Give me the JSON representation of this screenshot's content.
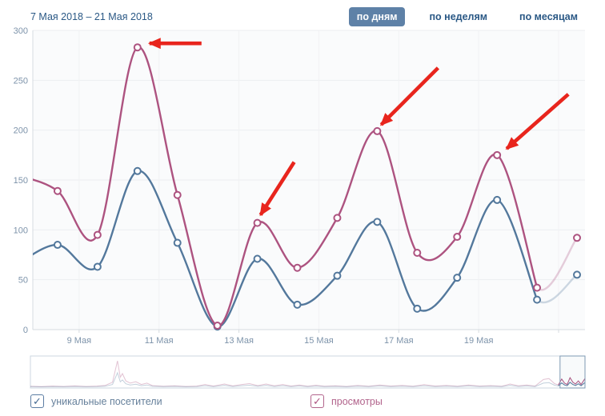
{
  "header": {
    "date_range": "7 Мая 2018 – 21 Мая 2018",
    "tabs": [
      {
        "label": "по дням",
        "active": true
      },
      {
        "label": "по неделям",
        "active": false
      },
      {
        "label": "по месяцам",
        "active": false
      }
    ]
  },
  "legend": {
    "items": [
      {
        "label": "уникальные посетители",
        "checked": true,
        "color": "#53789c"
      },
      {
        "label": "просмотры",
        "checked": true,
        "color": "#ad5380"
      }
    ]
  },
  "colors": {
    "link_blue": "#2a5885",
    "active_tab_bg": "#5e81a7",
    "visitors_line": "#53789c",
    "views_line": "#ad5380",
    "arrow_red": "#e8251d",
    "axis_label": "#7d93aa",
    "grid_h": "#eceef1",
    "grid_v": "#f1f2f4",
    "axis_line": "#d6dbe0",
    "plot_bg": "#fafbfc",
    "minimap_border": "#ccd7e0",
    "selection_border": "#7e99b3"
  },
  "chart_data": {
    "type": "line",
    "title": "",
    "xlabel": "",
    "ylabel": "",
    "ylim": [
      0,
      300
    ],
    "yticks": [
      0,
      50,
      100,
      150,
      200,
      250,
      300
    ],
    "x_labels": [
      "9 Мая",
      "11 Мая",
      "13 Мая",
      "15 Мая",
      "17 Мая",
      "19 Мая"
    ],
    "label_day_indices": [
      2,
      4,
      6,
      8,
      10,
      12
    ],
    "grid_day_indices": [
      2,
      4,
      6,
      8,
      10,
      12,
      14
    ],
    "days": [
      "7 Мая",
      "8 Мая",
      "9 Мая",
      "10 Мая",
      "11 Мая",
      "12 Мая",
      "13 Мая",
      "14 Мая",
      "15 Мая",
      "16 Мая",
      "17 Мая",
      "18 Мая",
      "19 Мая",
      "20 Мая",
      "21 Мая"
    ],
    "series": [
      {
        "name": "уникальные посетители",
        "color": "#53789c",
        "values": [
          66,
          85,
          63,
          159,
          87,
          3,
          71,
          25,
          54,
          108,
          21,
          52,
          130,
          30,
          55
        ]
      },
      {
        "name": "просмотры",
        "color": "#ad5380",
        "values": [
          155,
          139,
          95,
          283,
          135,
          4,
          107,
          62,
          112,
          199,
          77,
          93,
          175,
          42,
          92
        ]
      }
    ],
    "faded_last_segment": true,
    "annotations": [
      {
        "series": "просмотры",
        "target_day": "10 Мая",
        "value": 283,
        "day_index": 3,
        "tail_dx": 80,
        "tail_dy": -5,
        "tip_dx": 15,
        "tip_dy": -5
      },
      {
        "series": "просмотры",
        "target_day": "13 Мая",
        "value": 107,
        "day_index": 6,
        "tail_dx": 46,
        "tail_dy": -76,
        "tip_dx": 4,
        "tip_dy": -10
      },
      {
        "series": "просмотры",
        "target_day": "16 Мая",
        "value": 199,
        "day_index": 9,
        "tail_dx": 76,
        "tail_dy": -79,
        "tip_dx": 5,
        "tip_dy": -8
      },
      {
        "series": "просмотры",
        "target_day": "19 Мая",
        "value": 175,
        "day_index": 12,
        "tail_dx": 89,
        "tail_dy": -76,
        "tip_dx": 12,
        "tip_dy": -8
      }
    ],
    "overview": {
      "selection_start_frac": 0.955,
      "selection_end_frac": 1.0,
      "fracs": [
        0,
        0.02,
        0.04,
        0.06,
        0.08,
        0.1,
        0.12,
        0.135,
        0.148,
        0.157,
        0.162,
        0.166,
        0.172,
        0.18,
        0.19,
        0.2,
        0.21,
        0.22,
        0.24,
        0.26,
        0.28,
        0.3,
        0.315,
        0.33,
        0.35,
        0.365,
        0.38,
        0.395,
        0.41,
        0.425,
        0.44,
        0.455,
        0.47,
        0.485,
        0.5,
        0.515,
        0.53,
        0.55,
        0.57,
        0.59,
        0.61,
        0.63,
        0.65,
        0.67,
        0.69,
        0.71,
        0.73,
        0.75,
        0.77,
        0.79,
        0.81,
        0.83,
        0.85,
        0.865,
        0.88,
        0.895,
        0.91,
        0.925,
        0.935,
        0.945,
        0.952,
        0.958,
        0.963,
        0.968,
        0.973,
        0.978,
        0.983,
        0.988,
        0.993,
        1.0
      ],
      "views": [
        10,
        6,
        12,
        8,
        14,
        8,
        12,
        20,
        55,
        290,
        110,
        150,
        70,
        45,
        60,
        30,
        45,
        18,
        10,
        16,
        8,
        12,
        30,
        12,
        35,
        14,
        28,
        40,
        18,
        35,
        15,
        30,
        12,
        25,
        10,
        22,
        10,
        16,
        8,
        20,
        10,
        25,
        12,
        20,
        10,
        28,
        12,
        20,
        10,
        25,
        12,
        18,
        10,
        35,
        15,
        25,
        12,
        85,
        95,
        40,
        25,
        90,
        45,
        30,
        105,
        55,
        35,
        70,
        30,
        95
      ],
      "visitors": [
        6,
        4,
        7,
        5,
        8,
        5,
        7,
        11,
        30,
        160,
        60,
        80,
        38,
        25,
        33,
        17,
        25,
        10,
        6,
        9,
        5,
        7,
        17,
        7,
        19,
        8,
        15,
        22,
        10,
        19,
        8,
        17,
        7,
        14,
        6,
        12,
        6,
        9,
        5,
        11,
        6,
        14,
        7,
        11,
        6,
        15,
        7,
        11,
        6,
        14,
        7,
        10,
        6,
        19,
        8,
        14,
        7,
        45,
        50,
        22,
        14,
        48,
        25,
        17,
        55,
        30,
        19,
        38,
        17,
        52
      ]
    }
  }
}
